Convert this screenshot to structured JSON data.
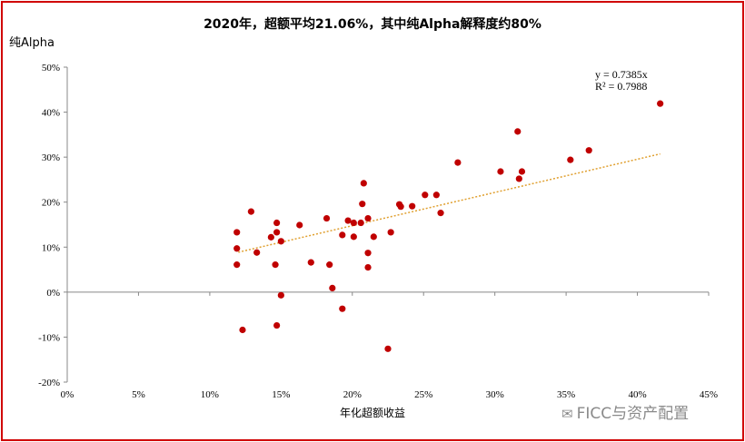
{
  "chart_data": {
    "type": "scatter",
    "title": "2020年，超额平均21.06%，其中纯Alpha解释度约80%",
    "xlabel": "年化超额收益",
    "ylabel": "纯Alpha",
    "xlim": [
      0,
      0.45
    ],
    "ylim": [
      -0.2,
      0.5
    ],
    "x_ticks": [
      "0%",
      "5%",
      "10%",
      "15%",
      "20%",
      "25%",
      "30%",
      "35%",
      "40%",
      "45%"
    ],
    "y_ticks": [
      "50%",
      "40%",
      "30%",
      "20%",
      "10%",
      "0%",
      "-10%",
      "-20%"
    ],
    "grid": false,
    "point_color": "#c00000",
    "trendline": {
      "slope": 0.7385,
      "equation": "y = 0.7385x",
      "r2": "R² = 0.7988",
      "color": "#e0a030",
      "x_from": 0.12,
      "x_to": 0.416
    },
    "points": [
      [
        0.119,
        0.133
      ],
      [
        0.119,
        0.097
      ],
      [
        0.119,
        0.061
      ],
      [
        0.123,
        -0.084
      ],
      [
        0.129,
        0.179
      ],
      [
        0.133,
        0.088
      ],
      [
        0.143,
        0.122
      ],
      [
        0.147,
        0.154
      ],
      [
        0.147,
        0.133
      ],
      [
        0.146,
        0.061
      ],
      [
        0.147,
        -0.074
      ],
      [
        0.15,
        0.113
      ],
      [
        0.15,
        -0.007
      ],
      [
        0.163,
        0.149
      ],
      [
        0.171,
        0.066
      ],
      [
        0.182,
        0.164
      ],
      [
        0.184,
        0.061
      ],
      [
        0.186,
        0.009
      ],
      [
        0.193,
        0.127
      ],
      [
        0.193,
        -0.037
      ],
      [
        0.197,
        0.159
      ],
      [
        0.201,
        0.123
      ],
      [
        0.201,
        0.154
      ],
      [
        0.206,
        0.154
      ],
      [
        0.207,
        0.196
      ],
      [
        0.208,
        0.242
      ],
      [
        0.211,
        0.164
      ],
      [
        0.211,
        0.087
      ],
      [
        0.211,
        0.055
      ],
      [
        0.215,
        0.123
      ],
      [
        0.225,
        -0.126
      ],
      [
        0.227,
        0.133
      ],
      [
        0.233,
        0.195
      ],
      [
        0.234,
        0.19
      ],
      [
        0.242,
        0.191
      ],
      [
        0.251,
        0.216
      ],
      [
        0.259,
        0.216
      ],
      [
        0.262,
        0.176
      ],
      [
        0.274,
        0.288
      ],
      [
        0.304,
        0.268
      ],
      [
        0.316,
        0.357
      ],
      [
        0.317,
        0.252
      ],
      [
        0.319,
        0.268
      ],
      [
        0.353,
        0.294
      ],
      [
        0.366,
        0.315
      ],
      [
        0.416,
        0.419
      ]
    ]
  },
  "watermark": {
    "icon": "wechat-icon",
    "text": "FICC与资产配置"
  }
}
